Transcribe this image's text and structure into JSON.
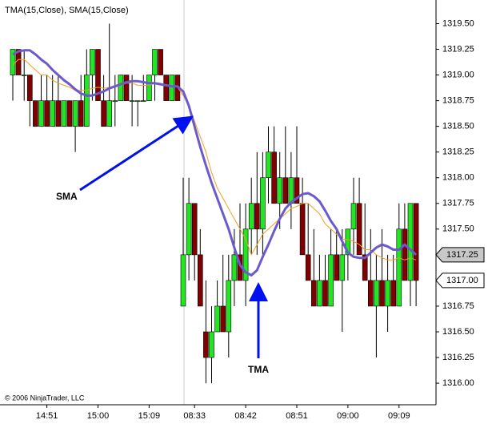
{
  "chart_data": {
    "type": "candlestick",
    "title": "TMA(15,Close), SMA(15,Close)",
    "footer": "© 2006 NinjaTrader, LLC",
    "categories": [
      null,
      null,
      null,
      null,
      null,
      null,
      "14:51",
      null,
      null,
      null,
      null,
      null,
      null,
      null,
      null,
      "15:00",
      null,
      null,
      null,
      null,
      null,
      null,
      null,
      null,
      "15:09",
      null,
      null,
      null,
      null,
      null,
      null,
      null,
      "08:33",
      null,
      null,
      null,
      null,
      null,
      null,
      null,
      null,
      "08:42",
      null,
      null,
      null,
      null,
      null,
      null,
      null,
      null,
      "08:51",
      null,
      null,
      null,
      null,
      null,
      null,
      null,
      null,
      "09:00",
      null,
      null,
      null,
      null,
      null,
      null,
      null,
      null,
      "09:09",
      null,
      null,
      null
    ],
    "open": [
      1319.0,
      1319.25,
      1319.0,
      1319.0,
      1318.75,
      1318.5,
      1318.75,
      1318.5,
      1318.75,
      1318.5,
      1318.75,
      1318.5,
      1318.75,
      1318.5,
      1319.0,
      1319.25,
      1318.75,
      1318.5,
      1318.75,
      1318.75,
      1319.0,
      1318.75,
      1318.75,
      1318.75,
      1318.75,
      1319.0,
      1319.25,
      1319.0,
      1318.75,
      1319.0,
      1316.75,
      1317.25,
      1317.75,
      1317.25,
      1316.5,
      1316.25,
      1316.5,
      1316.75,
      1316.5,
      1317.0,
      1317.25,
      1317.0,
      1317.5,
      1317.75,
      1317.5,
      1318.0,
      1318.25,
      1317.75,
      1318.0,
      1317.75,
      1318.0,
      1317.75,
      1317.25,
      1317.0,
      1316.75,
      1317.0,
      1316.75,
      1317.25,
      1317.0,
      1317.25,
      1317.5,
      1317.75,
      1317.25,
      1317.0,
      1316.75,
      1317.0,
      1316.75,
      1317.0,
      1316.75,
      1317.5,
      1317.0,
      1317.75
    ],
    "high": [
      1319.25,
      1319.25,
      1319.25,
      1319.0,
      1318.75,
      1319.0,
      1319.0,
      1319.0,
      1319.0,
      1318.75,
      1318.75,
      1318.75,
      1319.0,
      1319.25,
      1319.25,
      1319.25,
      1319.0,
      1319.5,
      1319.0,
      1319.0,
      1319.0,
      1319.0,
      1318.75,
      1319.0,
      1319.0,
      1319.25,
      1319.25,
      1319.0,
      1319.0,
      1319.0,
      1318.0,
      1318.0,
      1317.75,
      1317.5,
      1317.0,
      1316.75,
      1317.0,
      1317.25,
      1317.25,
      1317.5,
      1317.75,
      1317.75,
      1318.0,
      1318.25,
      1318.25,
      1318.5,
      1318.5,
      1318.25,
      1318.5,
      1318.25,
      1318.5,
      1318.0,
      1317.75,
      1317.5,
      1317.25,
      1317.25,
      1317.5,
      1317.5,
      1317.5,
      1317.5,
      1318.0,
      1318.0,
      1317.75,
      1317.5,
      1317.25,
      1317.5,
      1317.25,
      1317.25,
      1317.75,
      1317.75,
      1317.75,
      1317.75
    ],
    "low": [
      1318.75,
      1319.0,
      1318.75,
      1318.5,
      1318.5,
      1318.5,
      1318.5,
      1318.5,
      1318.5,
      1318.5,
      1318.5,
      1318.25,
      1318.5,
      1318.5,
      1318.75,
      1318.75,
      1318.5,
      1318.5,
      1318.5,
      1318.75,
      1318.75,
      1318.5,
      1318.5,
      1318.75,
      1318.75,
      1318.75,
      1319.0,
      1318.75,
      1318.75,
      1318.75,
      1316.75,
      1317.0,
      1317.0,
      1316.75,
      1316.0,
      1316.0,
      1316.5,
      1316.5,
      1316.25,
      1316.75,
      1317.0,
      1316.75,
      1317.25,
      1317.25,
      1317.25,
      1317.75,
      1317.75,
      1317.5,
      1317.75,
      1317.5,
      1317.75,
      1317.25,
      1317.0,
      1316.75,
      1316.75,
      1316.75,
      1316.75,
      1317.0,
      1316.5,
      1317.0,
      1317.25,
      1317.25,
      1317.0,
      1316.75,
      1316.25,
      1316.75,
      1316.5,
      1316.75,
      1316.75,
      1317.0,
      1316.75,
      1316.75
    ],
    "close": [
      1319.25,
      1319.0,
      1319.0,
      1318.75,
      1318.5,
      1318.75,
      1318.5,
      1318.75,
      1318.5,
      1318.75,
      1318.5,
      1318.75,
      1318.5,
      1319.0,
      1319.25,
      1318.75,
      1318.5,
      1318.75,
      1318.75,
      1319.0,
      1318.75,
      1318.75,
      1318.75,
      1318.75,
      1319.0,
      1319.25,
      1319.0,
      1318.75,
      1319.0,
      1318.75,
      1317.25,
      1317.75,
      1317.25,
      1316.75,
      1316.25,
      1316.5,
      1316.75,
      1316.5,
      1317.0,
      1317.25,
      1317.0,
      1317.5,
      1317.75,
      1317.5,
      1318.0,
      1318.25,
      1317.75,
      1318.0,
      1317.75,
      1318.0,
      1317.75,
      1317.25,
      1317.0,
      1316.75,
      1317.0,
      1316.75,
      1317.25,
      1317.0,
      1317.25,
      1317.5,
      1317.75,
      1317.25,
      1317.0,
      1316.75,
      1317.0,
      1316.75,
      1317.0,
      1316.75,
      1317.5,
      1317.0,
      1317.75,
      1317.0
    ],
    "up_color": "#22e622",
    "down_color": "#800000",
    "series": [
      {
        "name": "TMA",
        "color": "#6a5acd",
        "width": 3,
        "values": [
          1319.2,
          1319.23,
          1319.24,
          1319.24,
          1319.2,
          1319.15,
          1319.11,
          1319.05,
          1319.0,
          1318.95,
          1318.91,
          1318.86,
          1318.82,
          1318.8,
          1318.8,
          1318.82,
          1318.84,
          1318.87,
          1318.89,
          1318.91,
          1318.93,
          1318.94,
          1318.94,
          1318.93,
          1318.92,
          1318.92,
          1318.91,
          1318.9,
          1318.89,
          1318.89,
          1318.84,
          1318.7,
          1318.5,
          1318.3,
          1318.12,
          1317.95,
          1317.8,
          1317.65,
          1317.5,
          1317.32,
          1317.15,
          1317.08,
          1317.05,
          1317.1,
          1317.23,
          1317.35,
          1317.48,
          1317.6,
          1317.7,
          1317.76,
          1317.8,
          1317.84,
          1317.85,
          1317.82,
          1317.77,
          1317.68,
          1317.58,
          1317.5,
          1317.38,
          1317.27,
          1317.23,
          1317.22,
          1317.22,
          1317.27,
          1317.32,
          1317.35,
          1317.33,
          1317.3,
          1317.3,
          1317.35,
          1317.3,
          1317.25
        ]
      },
      {
        "name": "SMA",
        "color": "#f0a020",
        "width": 1,
        "values": [
          1319.1,
          1319.15,
          1319.15,
          1319.1,
          1319.05,
          1319.0,
          1319.0,
          1318.95,
          1318.92,
          1318.9,
          1318.88,
          1318.85,
          1318.85,
          1318.85,
          1318.87,
          1318.88,
          1318.87,
          1318.88,
          1318.88,
          1318.9,
          1318.92,
          1318.92,
          1318.9,
          1318.9,
          1318.9,
          1318.92,
          1318.92,
          1318.9,
          1318.9,
          1318.88,
          1318.8,
          1318.7,
          1318.55,
          1318.4,
          1318.25,
          1318.05,
          1317.9,
          1317.8,
          1317.7,
          1317.6,
          1317.5,
          1317.4,
          1317.25,
          1317.35,
          1317.45,
          1317.5,
          1317.55,
          1317.6,
          1317.65,
          1317.7,
          1317.72,
          1317.75,
          1317.75,
          1317.7,
          1317.65,
          1317.55,
          1317.5,
          1317.45,
          1317.4,
          1317.4,
          1317.38,
          1317.35,
          1317.3,
          1317.3,
          1317.25,
          1317.22,
          1317.2,
          1317.2,
          1317.22,
          1317.2,
          1317.22,
          1317.2
        ]
      }
    ],
    "price_markers": [
      {
        "value": 1317.25,
        "label": "1317.25"
      },
      {
        "value": 1317.0,
        "label": "1317.00"
      }
    ],
    "ylim": [
      1315.79,
      1319.73
    ],
    "yticks": [
      {
        "value": 1316.0,
        "label": "1316.00"
      },
      {
        "value": 1316.25,
        "label": "1316.25"
      },
      {
        "value": 1316.5,
        "label": "1316.50"
      },
      {
        "value": 1316.75,
        "label": "1316.75"
      },
      {
        "value": 1317.0,
        "label": "1317.00"
      },
      {
        "value": 1317.25,
        "label": "1317.25"
      },
      {
        "value": 1317.5,
        "label": "1317.50"
      },
      {
        "value": 1317.75,
        "label": "1317.75"
      },
      {
        "value": 1318.0,
        "label": "1318.00"
      },
      {
        "value": 1318.25,
        "label": "1318.25"
      },
      {
        "value": 1318.5,
        "label": "1318.50"
      },
      {
        "value": 1318.75,
        "label": "1318.75"
      },
      {
        "value": 1319.0,
        "label": "1319.00"
      },
      {
        "value": 1319.25,
        "label": "1319.25"
      },
      {
        "value": 1319.5,
        "label": "1319.50"
      }
    ]
  }
}
